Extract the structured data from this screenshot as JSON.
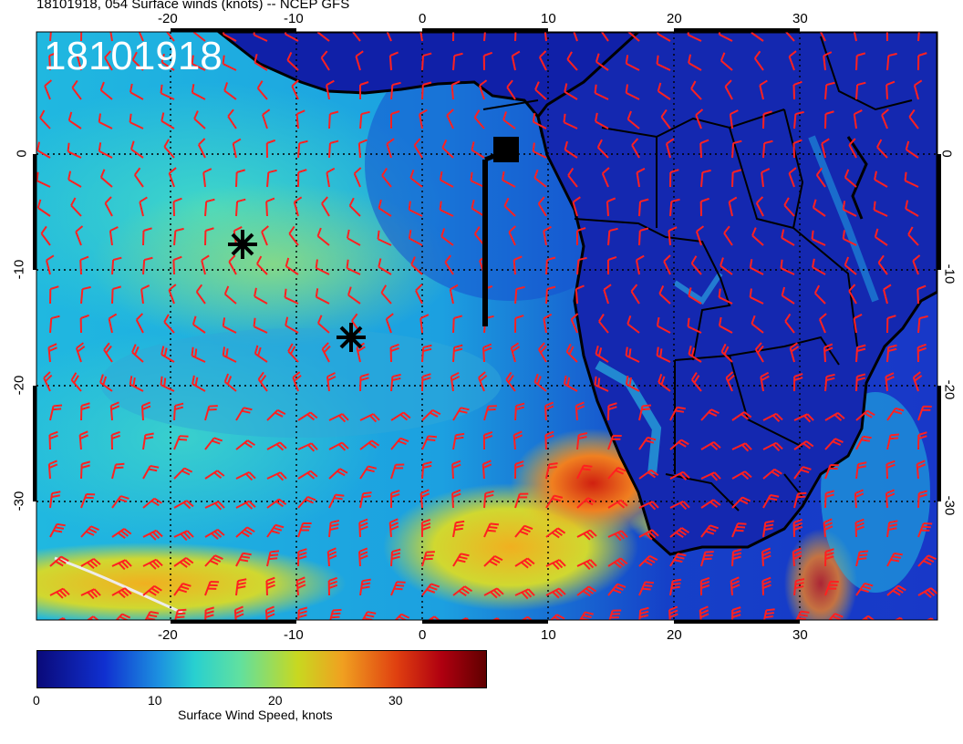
{
  "title": "18101918, 054 Surface winds (knots) -- NCEP GFS",
  "stamp": "18101918",
  "lon_labels_top": [
    "-20",
    "-10",
    "0",
    "10",
    "20",
    "30"
  ],
  "lon_labels_bottom": [
    "-20",
    "-10",
    "0",
    "10",
    "20",
    "30"
  ],
  "lat_labels_left": [
    "0",
    "-10",
    "-20",
    "-30"
  ],
  "lat_labels_right": [
    "0",
    "-10",
    "-20",
    "-30"
  ],
  "colorbar": {
    "ticks": [
      "0",
      "10",
      "20",
      "30"
    ],
    "title": "Surface Wind Speed, knots",
    "range": [
      0,
      38
    ]
  },
  "colors": {
    "barbs": "#ff2020",
    "coast": "#000000",
    "calm": "#1530c0",
    "strong": "#d03010"
  },
  "markers": [
    {
      "type": "asterisk",
      "lon": -14.5,
      "lat": -8.5
    },
    {
      "type": "asterisk",
      "lon": -5.5,
      "lat": -16
    },
    {
      "type": "station-square",
      "lon": 6.5,
      "lat": 1.5
    }
  ]
}
